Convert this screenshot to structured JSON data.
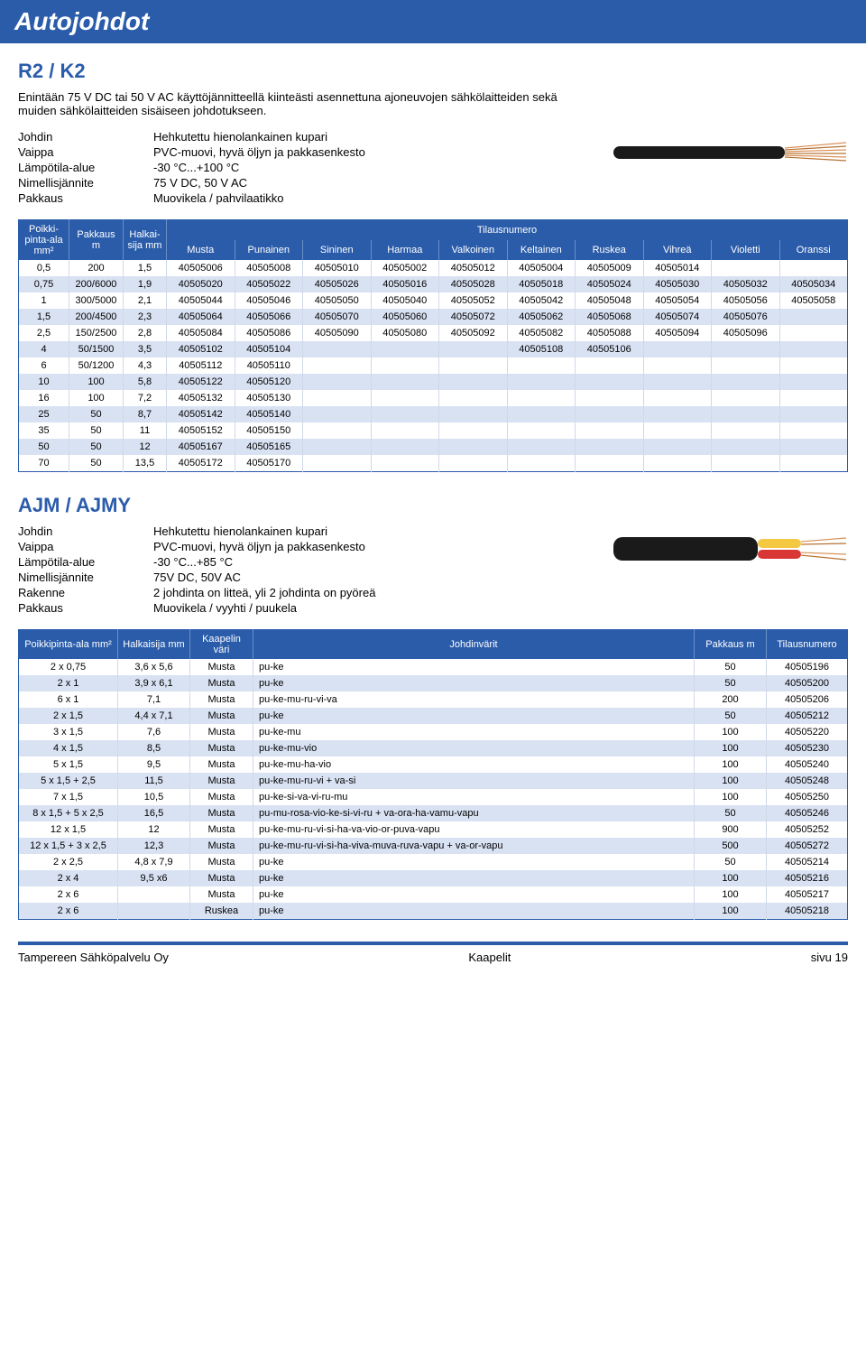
{
  "title": "Autojohdot",
  "section1": {
    "heading": "R2 / K2",
    "subtitle": "Enintään 75 V DC tai 50 V AC käyttöjännitteellä kiinteästi asennettuna ajoneuvojen sähkölaitteiden sekä muiden sähkölaitteiden sisäiseen johdotukseen.",
    "specs": [
      {
        "label": "Johdin",
        "value": "Hehkutettu hienolankainen kupari"
      },
      {
        "label": "Vaippa",
        "value": "PVC-muovi, hyvä öljyn ja pakkasenkesto"
      },
      {
        "label": "Lämpötila-alue",
        "value": "-30 °C...+100 °C"
      },
      {
        "label": "Nimellisjännite",
        "value": "75 V DC, 50 V AC"
      },
      {
        "label": "Pakkaus",
        "value": "Muovikela / pahvilaatikko"
      }
    ]
  },
  "table1": {
    "head": {
      "col1": "Poikki-pinta-ala mm²",
      "col2": "Pakkaus m",
      "col3": "Halkai-sija mm",
      "group": "Tilausnumero",
      "colors": [
        "Musta",
        "Punainen",
        "Sininen",
        "Harmaa",
        "Valkoinen",
        "Keltainen",
        "Ruskea",
        "Vihreä",
        "Violetti",
        "Oranssi"
      ]
    },
    "rows": [
      [
        "0,5",
        "200",
        "1,5",
        "40505006",
        "40505008",
        "40505010",
        "40505002",
        "40505012",
        "40505004",
        "40505009",
        "40505014",
        "",
        ""
      ],
      [
        "0,75",
        "200/6000",
        "1,9",
        "40505020",
        "40505022",
        "40505026",
        "40505016",
        "40505028",
        "40505018",
        "40505024",
        "40505030",
        "40505032",
        "40505034"
      ],
      [
        "1",
        "300/5000",
        "2,1",
        "40505044",
        "40505046",
        "40505050",
        "40505040",
        "40505052",
        "40505042",
        "40505048",
        "40505054",
        "40505056",
        "40505058"
      ],
      [
        "1,5",
        "200/4500",
        "2,3",
        "40505064",
        "40505066",
        "40505070",
        "40505060",
        "40505072",
        "40505062",
        "40505068",
        "40505074",
        "40505076",
        ""
      ],
      [
        "2,5",
        "150/2500",
        "2,8",
        "40505084",
        "40505086",
        "40505090",
        "40505080",
        "40505092",
        "40505082",
        "40505088",
        "40505094",
        "40505096",
        ""
      ],
      [
        "4",
        "50/1500",
        "3,5",
        "40505102",
        "40505104",
        "",
        "",
        "",
        "40505108",
        "40505106",
        "",
        "",
        ""
      ],
      [
        "6",
        "50/1200",
        "4,3",
        "40505112",
        "40505110",
        "",
        "",
        "",
        "",
        "",
        "",
        "",
        ""
      ],
      [
        "10",
        "100",
        "5,8",
        "40505122",
        "40505120",
        "",
        "",
        "",
        "",
        "",
        "",
        "",
        ""
      ],
      [
        "16",
        "100",
        "7,2",
        "40505132",
        "40505130",
        "",
        "",
        "",
        "",
        "",
        "",
        "",
        ""
      ],
      [
        "25",
        "50",
        "8,7",
        "40505142",
        "40505140",
        "",
        "",
        "",
        "",
        "",
        "",
        "",
        ""
      ],
      [
        "35",
        "50",
        "11",
        "40505152",
        "40505150",
        "",
        "",
        "",
        "",
        "",
        "",
        "",
        ""
      ],
      [
        "50",
        "50",
        "12",
        "40505167",
        "40505165",
        "",
        "",
        "",
        "",
        "",
        "",
        "",
        ""
      ],
      [
        "70",
        "50",
        "13,5",
        "40505172",
        "40505170",
        "",
        "",
        "",
        "",
        "",
        "",
        "",
        ""
      ]
    ]
  },
  "section2": {
    "heading": "AJM / AJMY",
    "specs": [
      {
        "label": "Johdin",
        "value": "Hehkutettu hienolankainen kupari"
      },
      {
        "label": "Vaippa",
        "value": "PVC-muovi, hyvä öljyn ja pakkasenkesto"
      },
      {
        "label": "Lämpötila-alue",
        "value": "-30 °C...+85 °C"
      },
      {
        "label": "Nimellisjännite",
        "value": "75V DC, 50V AC"
      },
      {
        "label": "Rakenne",
        "value": "2 johdinta on litteä, yli 2 johdinta on pyöreä"
      },
      {
        "label": "Pakkaus",
        "value": "Muovikela / vyyhti / puukela"
      }
    ]
  },
  "table2": {
    "head": [
      "Poikkipinta-ala mm²",
      "Halkaisija mm",
      "Kaapelin väri",
      "Johdinvärit",
      "Pakkaus m",
      "Tilausnumero"
    ],
    "rows": [
      [
        "2 x 0,75",
        "3,6 x 5,6",
        "Musta",
        "pu-ke",
        "50",
        "40505196"
      ],
      [
        "2 x 1",
        "3,9 x 6,1",
        "Musta",
        "pu-ke",
        "50",
        "40505200"
      ],
      [
        "6 x 1",
        "7,1",
        "Musta",
        "pu-ke-mu-ru-vi-va",
        "200",
        "40505206"
      ],
      [
        "2 x 1,5",
        "4,4 x 7,1",
        "Musta",
        "pu-ke",
        "50",
        "40505212"
      ],
      [
        "3 x 1,5",
        "7,6",
        "Musta",
        "pu-ke-mu",
        "100",
        "40505220"
      ],
      [
        "4 x 1,5",
        "8,5",
        "Musta",
        "pu-ke-mu-vio",
        "100",
        "40505230"
      ],
      [
        "5 x 1,5",
        "9,5",
        "Musta",
        "pu-ke-mu-ha-vio",
        "100",
        "40505240"
      ],
      [
        "5 x 1,5 + 2,5",
        "11,5",
        "Musta",
        "pu-ke-mu-ru-vi + va-si",
        "100",
        "40505248"
      ],
      [
        "7 x 1,5",
        "10,5",
        "Musta",
        "pu-ke-si-va-vi-ru-mu",
        "100",
        "40505250"
      ],
      [
        "8 x 1,5 + 5 x 2,5",
        "16,5",
        "Musta",
        "pu-mu-rosa-vio-ke-si-vi-ru + va-ora-ha-vamu-vapu",
        "50",
        "40505246"
      ],
      [
        "12 x 1,5",
        "12",
        "Musta",
        "pu-ke-mu-ru-vi-si-ha-va-vio-or-puva-vapu",
        "900",
        "40505252"
      ],
      [
        "12 x 1,5 + 3 x 2,5",
        "12,3",
        "Musta",
        "pu-ke-mu-ru-vi-si-ha-viva-muva-ruva-vapu + va-or-vapu",
        "500",
        "40505272"
      ],
      [
        "2 x 2,5",
        "4,8 x 7,9",
        "Musta",
        "pu-ke",
        "50",
        "40505214"
      ],
      [
        "2 x 4",
        "9,5 x6",
        "Musta",
        "pu-ke",
        "100",
        "40505216"
      ],
      [
        "2 x 6",
        "",
        "Musta",
        "pu-ke",
        "100",
        "40505217"
      ],
      [
        "2 x 6",
        "",
        "Ruskea",
        "pu-ke",
        "100",
        "40505218"
      ]
    ]
  },
  "footer": {
    "left": "Tampereen Sähköpalvelu Oy",
    "center": "Kaapelit",
    "right": "sivu 19"
  },
  "colors": {
    "brand_blue": "#2a5caa",
    "row_alt": "#d9e2f3",
    "cable_black": "#1a1a1a",
    "cable_copper1": "#d99058",
    "cable_copper2": "#b87333",
    "cable_yellow": "#f5c842",
    "cable_red": "#d93636"
  }
}
